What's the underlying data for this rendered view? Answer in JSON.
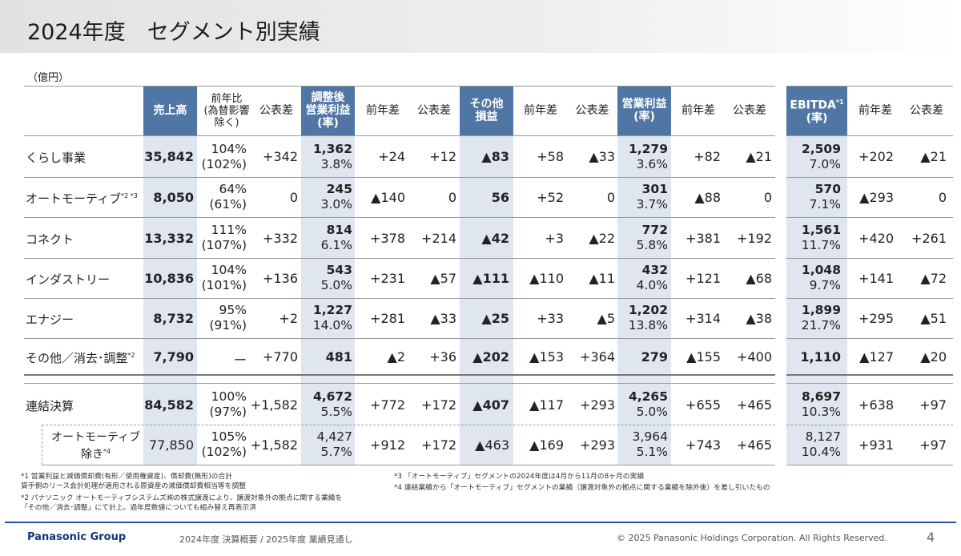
{
  "header": {
    "title": "2024年度　セグメント別実績",
    "unit": "（億円）"
  },
  "columns": {
    "sales": "売上高",
    "yoy_ratio": "前年比\n(為替影響\n除く)",
    "vs_plan": "公表差",
    "adj_op": "調整後\n営業利益\n(率)",
    "yoy": "前年差",
    "other": "その他\n損益",
    "op": "営業利益\n(率)",
    "ebitda": "EBITDA",
    "ebitda_note": "*1",
    "ebitda_rate": "(率)"
  },
  "rows": [
    {
      "label": "くらし事業",
      "note": "",
      "sales": "35,842",
      "ratio": "104%",
      "ratio_fx": "(102%)",
      "sales_plan": "+342",
      "adj": "1,362",
      "adj_rate": "3.8%",
      "adj_yoy": "+24",
      "adj_plan": "+12",
      "other": "▲83",
      "other_yoy": "+58",
      "other_plan": "▲33",
      "op": "1,279",
      "op_rate": "3.6%",
      "op_yoy": "+82",
      "op_plan": "▲21",
      "eb": "2,509",
      "eb_rate": "7.0%",
      "eb_yoy": "+202",
      "eb_plan": "▲21"
    },
    {
      "label": "オートモーティブ",
      "note": "*2 *3",
      "sales": "8,050",
      "ratio": "64%",
      "ratio_fx": "(61%)",
      "sales_plan": "0",
      "adj": "245",
      "adj_rate": "3.0%",
      "adj_yoy": "▲140",
      "adj_plan": "0",
      "other": "56",
      "other_yoy": "+52",
      "other_plan": "0",
      "op": "301",
      "op_rate": "3.7%",
      "op_yoy": "▲88",
      "op_plan": "0",
      "eb": "570",
      "eb_rate": "7.1%",
      "eb_yoy": "▲293",
      "eb_plan": "0"
    },
    {
      "label": "コネクト",
      "note": "",
      "sales": "13,332",
      "ratio": "111%",
      "ratio_fx": "(107%)",
      "sales_plan": "+332",
      "adj": "814",
      "adj_rate": "6.1%",
      "adj_yoy": "+378",
      "adj_plan": "+214",
      "other": "▲42",
      "other_yoy": "+3",
      "other_plan": "▲22",
      "op": "772",
      "op_rate": "5.8%",
      "op_yoy": "+381",
      "op_plan": "+192",
      "eb": "1,561",
      "eb_rate": "11.7%",
      "eb_yoy": "+420",
      "eb_plan": "+261"
    },
    {
      "label": "インダストリー",
      "note": "",
      "sales": "10,836",
      "ratio": "104%",
      "ratio_fx": "(101%)",
      "sales_plan": "+136",
      "adj": "543",
      "adj_rate": "5.0%",
      "adj_yoy": "+231",
      "adj_plan": "▲57",
      "other": "▲111",
      "other_yoy": "▲110",
      "other_plan": "▲11",
      "op": "432",
      "op_rate": "4.0%",
      "op_yoy": "+121",
      "op_plan": "▲68",
      "eb": "1,048",
      "eb_rate": "9.7%",
      "eb_yoy": "+141",
      "eb_plan": "▲72"
    },
    {
      "label": "エナジー",
      "note": "",
      "sales": "8,732",
      "ratio": "95%",
      "ratio_fx": "(91%)",
      "sales_plan": "+2",
      "adj": "1,227",
      "adj_rate": "14.0%",
      "adj_yoy": "+281",
      "adj_plan": "▲33",
      "other": "▲25",
      "other_yoy": "+33",
      "other_plan": "▲5",
      "op": "1,202",
      "op_rate": "13.8%",
      "op_yoy": "+314",
      "op_plan": "▲38",
      "eb": "1,899",
      "eb_rate": "21.7%",
      "eb_yoy": "+295",
      "eb_plan": "▲51"
    },
    {
      "label": "その他／消去･調整",
      "note": "*2",
      "sales": "7,790",
      "ratio": "ー",
      "ratio_fx": "",
      "sales_plan": "+770",
      "adj": "481",
      "adj_rate": "",
      "adj_yoy": "▲2",
      "adj_plan": "+36",
      "other": "▲202",
      "other_yoy": "▲153",
      "other_plan": "+364",
      "op": "279",
      "op_rate": "",
      "op_yoy": "▲155",
      "op_plan": "+400",
      "eb": "1,110",
      "eb_rate": "",
      "eb_yoy": "▲127",
      "eb_plan": "▲20"
    },
    {
      "label": "連結決算",
      "note": "",
      "sales": "84,582",
      "ratio": "100%",
      "ratio_fx": "(97%)",
      "sales_plan": "+1,582",
      "adj": "4,672",
      "adj_rate": "5.5%",
      "adj_yoy": "+772",
      "adj_plan": "+172",
      "other": "▲407",
      "other_yoy": "▲117",
      "other_plan": "+293",
      "op": "4,265",
      "op_rate": "5.0%",
      "op_yoy": "+655",
      "op_plan": "+465",
      "eb": "8,697",
      "eb_rate": "10.3%",
      "eb_yoy": "+638",
      "eb_plan": "+97"
    },
    {
      "label": "オートモーティブ",
      "label2": "除き",
      "note": "*4",
      "sales": "77,850",
      "ratio": "105%",
      "ratio_fx": "(102%)",
      "sales_plan": "+1,582",
      "adj": "4,427",
      "adj_rate": "5.7%",
      "adj_yoy": "+912",
      "adj_plan": "+172",
      "other": "▲463",
      "other_yoy": "▲169",
      "other_plan": "+293",
      "op": "3,964",
      "op_rate": "5.1%",
      "op_yoy": "+743",
      "op_plan": "+465",
      "eb": "8,127",
      "eb_rate": "10.4%",
      "eb_yoy": "+931",
      "eb_plan": "+97"
    }
  ],
  "footnotes": {
    "n1a": "*1  営業利益と減価償却費(有形／使用権資産)、償却費(無形)の合計",
    "n1b": "     貸手側のリース会計処理が適用される原資産の減価償却費相当等を調整",
    "n2a": "*2  パナソニック オートモーティブシステムズ㈱の株式譲渡により、譲渡対象外の拠点に関する業績を",
    "n2b": "     「その他／消去･調整」にて計上。過年度数値についても組み替え再表示済",
    "n3": "*3 「オートモーティブ」セグメントの2024年度は4月から11月の8ヶ月の実績",
    "n4": "*4  連結業績から「オートモーティブ」セグメントの業績（譲渡対象外の拠点に関する業績を除外後）を差し引いたもの"
  },
  "footer": {
    "brand": "Panasonic Group",
    "subtitle": "2024年度 決算概要 / 2025年度 業績見通し",
    "copyright": "© 2025 Panasonic Holdings Corporation. All Rights Reserved.",
    "page": "4"
  },
  "colors": {
    "header_blue": "#4f76a5",
    "highlight": "#dfe6ef",
    "brand_blue": "#13357f"
  }
}
